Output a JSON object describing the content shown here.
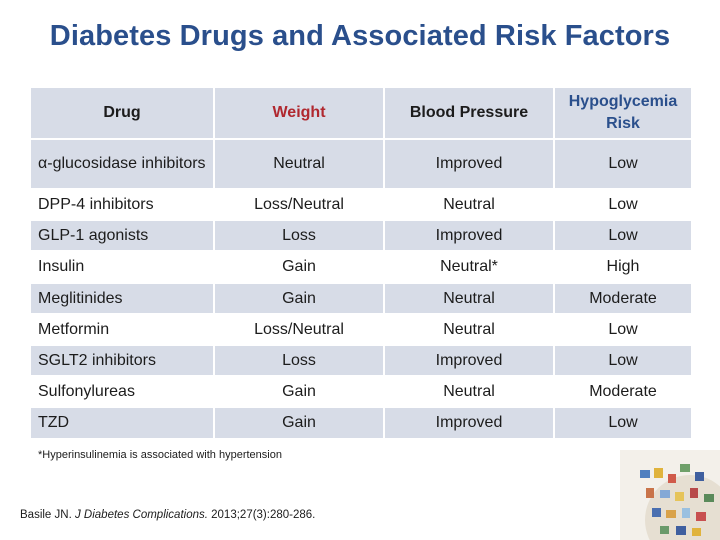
{
  "title": "Diabetes Drugs and Associated Risk Factors",
  "table": {
    "headers": [
      "Drug",
      "Weight",
      "Blood Pressure",
      "Hypoglycemia Risk"
    ],
    "rows": [
      {
        "drug": "α-glucosidase inhibitors",
        "weight": "Neutral",
        "bp": "Improved",
        "hypo": "Low"
      },
      {
        "drug": "DPP-4 inhibitors",
        "weight": "Loss/Neutral",
        "bp": "Neutral",
        "hypo": "Low"
      },
      {
        "drug": "GLP-1 agonists",
        "weight": "Loss",
        "bp": "Improved",
        "hypo": "Low"
      },
      {
        "drug": "Insulin",
        "weight": "Gain",
        "bp": "Neutral*",
        "hypo": "High"
      },
      {
        "drug": "Meglitinides",
        "weight": "Gain",
        "bp": "Neutral",
        "hypo": "Moderate"
      },
      {
        "drug": "Metformin",
        "weight": "Loss/Neutral",
        "bp": "Neutral",
        "hypo": "Low"
      },
      {
        "drug": "SGLT2 inhibitors",
        "weight": "Loss",
        "bp": "Improved",
        "hypo": "Low"
      },
      {
        "drug": "Sulfonylureas",
        "weight": "Gain",
        "bp": "Neutral",
        "hypo": "Moderate"
      },
      {
        "drug": "TZD",
        "weight": "Gain",
        "bp": "Improved",
        "hypo": "Low"
      }
    ]
  },
  "footnote": "*Hyperinsulinemia is associated with hypertension",
  "citation": {
    "author": "Basile JN.",
    "journal": "J Diabetes Complications.",
    "rest": "2013;27(3):280-286."
  },
  "colors": {
    "title": "#2a4f8c",
    "weight_header": "#b0282f",
    "hypo_header": "#2a4f8c",
    "band": "#d7dce7"
  }
}
